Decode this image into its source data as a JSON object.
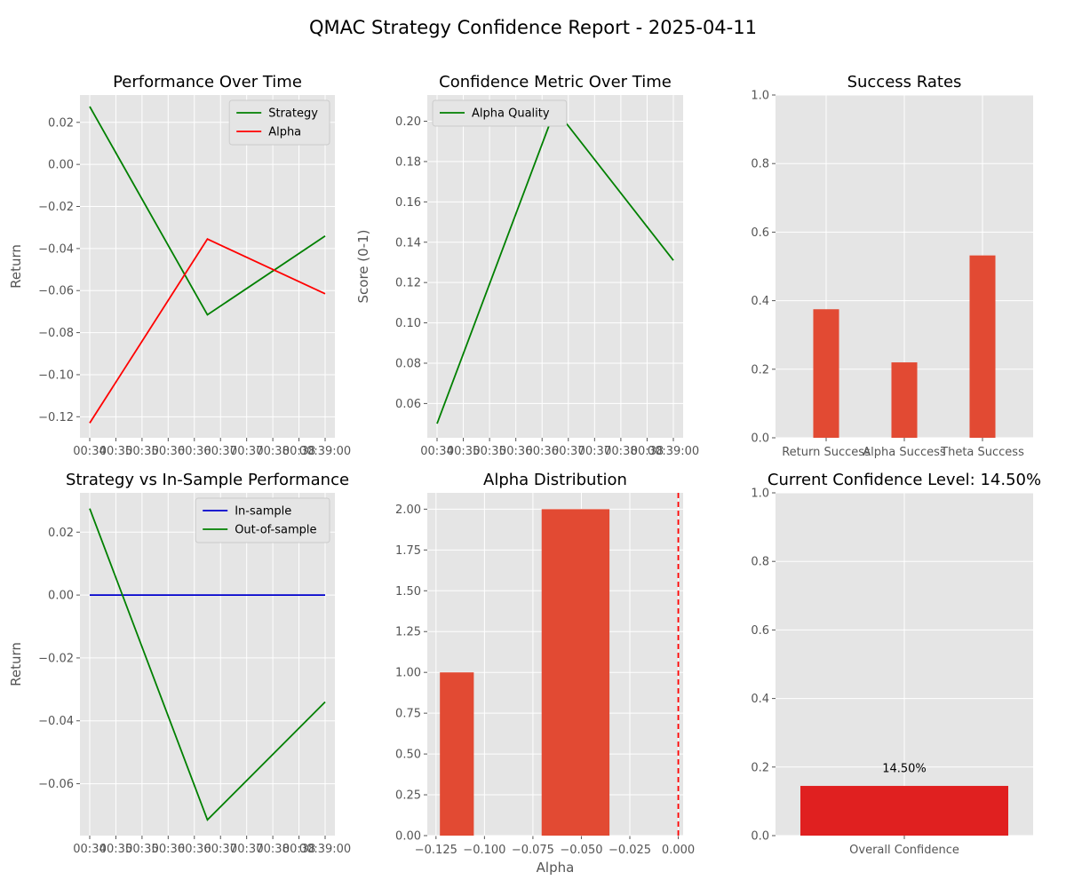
{
  "figure": {
    "title": "QMAC Strategy Confidence Report - 2025-04-11"
  },
  "chart_data": [
    {
      "type": "line",
      "title": "Performance Over Time",
      "ylabel": "Return",
      "xlabel": "",
      "x_tick_labels": [
        "00:34",
        "00:35",
        "00:35",
        "00:36",
        "00:36",
        "00:37",
        "00:37",
        "00:38",
        "00:38",
        "00:39:00"
      ],
      "x": [
        0,
        1,
        2
      ],
      "ylim": [
        -0.13,
        0.033
      ],
      "yticks": [
        -0.12,
        -0.1,
        -0.08,
        -0.06,
        -0.04,
        -0.02,
        0.0,
        0.02
      ],
      "legend": "top-right",
      "series": [
        {
          "name": "Strategy",
          "color": "#008000",
          "values": [
            0.0275,
            -0.0715,
            -0.034
          ]
        },
        {
          "name": "Alpha",
          "color": "#ff0000",
          "values": [
            -0.123,
            -0.0355,
            -0.0615
          ]
        }
      ]
    },
    {
      "type": "line",
      "title": "Confidence Metric Over Time",
      "ylabel": "Score (0-1)",
      "xlabel": "",
      "x_tick_labels": [
        "00:34",
        "00:35",
        "00:35",
        "00:36",
        "00:36",
        "00:37",
        "00:37",
        "00:38",
        "00:38",
        "00:39:00"
      ],
      "x": [
        0,
        1,
        2
      ],
      "ylim": [
        0.043,
        0.213
      ],
      "yticks": [
        0.06,
        0.08,
        0.1,
        0.12,
        0.14,
        0.16,
        0.18,
        0.2
      ],
      "legend": "top-left",
      "series": [
        {
          "name": "Alpha Quality",
          "color": "#008000",
          "values": [
            0.05,
            0.206,
            0.131
          ]
        }
      ]
    },
    {
      "type": "bar",
      "title": "Success Rates",
      "categories": [
        "Return Success",
        "Alpha Success",
        "Theta Success"
      ],
      "values": [
        0.375,
        0.22,
        0.532
      ],
      "ylim": [
        0,
        1.0
      ],
      "yticks": [
        0.0,
        0.2,
        0.4,
        0.6,
        0.8,
        1.0
      ],
      "color": "#e24a33"
    },
    {
      "type": "line",
      "title": "Strategy vs In-Sample Performance",
      "ylabel": "Return",
      "xlabel": "",
      "x_tick_labels": [
        "00:34",
        "00:35",
        "00:35",
        "00:36",
        "00:36",
        "00:37",
        "00:37",
        "00:38",
        "00:38",
        "00:39:00"
      ],
      "x": [
        0,
        1,
        2
      ],
      "ylim": [
        -0.0765,
        0.0325
      ],
      "yticks": [
        -0.06,
        -0.04,
        -0.02,
        0.0,
        0.02
      ],
      "legend": "top-right",
      "series": [
        {
          "name": "In-sample",
          "color": "#0000cd",
          "values": [
            0.0,
            0.0,
            0.0
          ]
        },
        {
          "name": "Out-of-sample",
          "color": "#008000",
          "values": [
            0.0275,
            -0.0715,
            -0.034
          ]
        }
      ]
    },
    {
      "type": "histogram",
      "title": "Alpha Distribution",
      "xlabel": "Alpha",
      "bins": [
        {
          "x0": -0.123,
          "x1": -0.1055,
          "count": 1
        },
        {
          "x0": -0.0705,
          "x1": -0.0355,
          "count": 2
        }
      ],
      "xlim": [
        -0.1295,
        0.0025
      ],
      "ylim": [
        0,
        2.1
      ],
      "xticks": [
        -0.125,
        -0.1,
        -0.075,
        -0.05,
        -0.025,
        0.0
      ],
      "yticks": [
        0.0,
        0.25,
        0.5,
        0.75,
        1.0,
        1.25,
        1.5,
        1.75,
        2.0
      ],
      "vline": {
        "x": 0.0,
        "color": "#ff0000",
        "style": "dashed"
      },
      "color": "#e24a33"
    },
    {
      "type": "bar",
      "title": "Current Confidence Level: 14.50%",
      "categories": [
        "Overall Confidence"
      ],
      "values": [
        0.145
      ],
      "data_label": "14.50%",
      "ylim": [
        0,
        1.0
      ],
      "yticks": [
        0.0,
        0.2,
        0.4,
        0.6,
        0.8,
        1.0
      ],
      "color": "#e02020"
    }
  ]
}
